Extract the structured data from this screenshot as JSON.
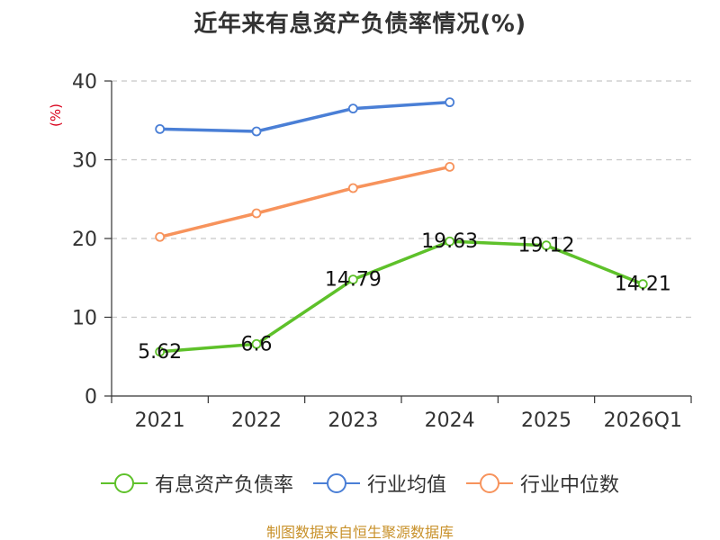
{
  "title": "近年来有息资产负债率情况(%)",
  "y_unit": "(%)",
  "source": "制图数据来自恒生聚源数据库",
  "chart_data": {
    "type": "line",
    "title": "近年来有息资产负债率情况(%)",
    "ylabel": "(%)",
    "categories": [
      "2021",
      "2022",
      "2023",
      "2024",
      "2025",
      "2026Q1"
    ],
    "ylim": [
      0,
      40
    ],
    "yticks": [
      0,
      10,
      20,
      30,
      40
    ],
    "grid": true,
    "legend_position": "bottom",
    "series": [
      {
        "name": "有息资产负债率",
        "color": "#5ec12a",
        "values": [
          5.62,
          6.6,
          14.79,
          19.63,
          19.12,
          14.21
        ],
        "labels": [
          "5.62",
          "6.6",
          "14.79",
          "19.63",
          "19.12",
          "14.21"
        ]
      },
      {
        "name": "行业均值",
        "color": "#4a7fd6",
        "values": [
          33.9,
          33.6,
          36.5,
          37.3,
          null,
          null
        ]
      },
      {
        "name": "行业中位数",
        "color": "#f7935c",
        "values": [
          20.2,
          23.2,
          26.4,
          29.1,
          null,
          null
        ]
      }
    ]
  }
}
